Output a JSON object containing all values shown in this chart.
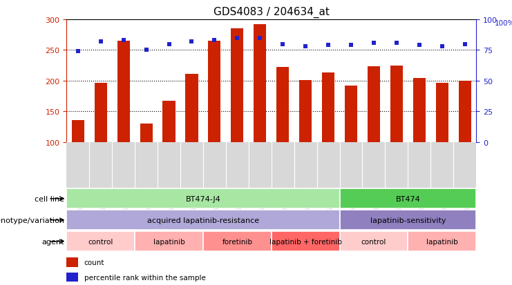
{
  "title": "GDS4083 / 204634_at",
  "samples": [
    "GSM799174",
    "GSM799175",
    "GSM799176",
    "GSM799180",
    "GSM799181",
    "GSM799182",
    "GSM799177",
    "GSM799178",
    "GSM799179",
    "GSM799183",
    "GSM799184",
    "GSM799185",
    "GSM799168",
    "GSM799169",
    "GSM799170",
    "GSM799171",
    "GSM799172",
    "GSM799173"
  ],
  "counts": [
    136,
    197,
    265,
    130,
    167,
    211,
    265,
    285,
    292,
    222,
    201,
    214,
    192,
    224,
    225,
    205,
    197,
    200
  ],
  "percentiles": [
    74,
    82,
    83,
    75,
    80,
    82,
    83,
    85,
    85,
    80,
    78,
    79,
    79,
    81,
    81,
    79,
    78,
    80
  ],
  "ymin": 100,
  "ymax": 300,
  "yticks_left": [
    100,
    150,
    200,
    250,
    300
  ],
  "yticks_right": [
    0,
    25,
    50,
    75,
    100
  ],
  "cell_line_groups": [
    {
      "label": "BT474-J4",
      "start": 0,
      "end": 11,
      "color": "#A8E6A3"
    },
    {
      "label": "BT474",
      "start": 12,
      "end": 17,
      "color": "#55CC55"
    }
  ],
  "genotype_groups": [
    {
      "label": "acquired lapatinib-resistance",
      "start": 0,
      "end": 11,
      "color": "#B0A8D8"
    },
    {
      "label": "lapatinib-sensitivity",
      "start": 12,
      "end": 17,
      "color": "#9080C0"
    }
  ],
  "agent_groups": [
    {
      "label": "control",
      "start": 0,
      "end": 2,
      "color": "#FFCCCC"
    },
    {
      "label": "lapatinib",
      "start": 3,
      "end": 5,
      "color": "#FFB0B0"
    },
    {
      "label": "foretinib",
      "start": 6,
      "end": 8,
      "color": "#FF9090"
    },
    {
      "label": "lapatinib + foretinib",
      "start": 9,
      "end": 11,
      "color": "#FF6666"
    },
    {
      "label": "control",
      "start": 12,
      "end": 14,
      "color": "#FFCCCC"
    },
    {
      "label": "lapatinib",
      "start": 15,
      "end": 17,
      "color": "#FFB0B0"
    }
  ],
  "bar_color": "#CC2200",
  "dot_color": "#2222CC",
  "background_color": "#FFFFFF",
  "tick_bg_color": "#D8D8D8",
  "left_axis_color": "#CC2200",
  "right_axis_color": "#2222CC",
  "grid_color": "black",
  "bar_width": 0.55,
  "sample_fontsize": 6.5,
  "row_label_fontsize": 8,
  "annotation_fontsize": 8,
  "legend_fontsize": 7.5,
  "title_fontsize": 11
}
